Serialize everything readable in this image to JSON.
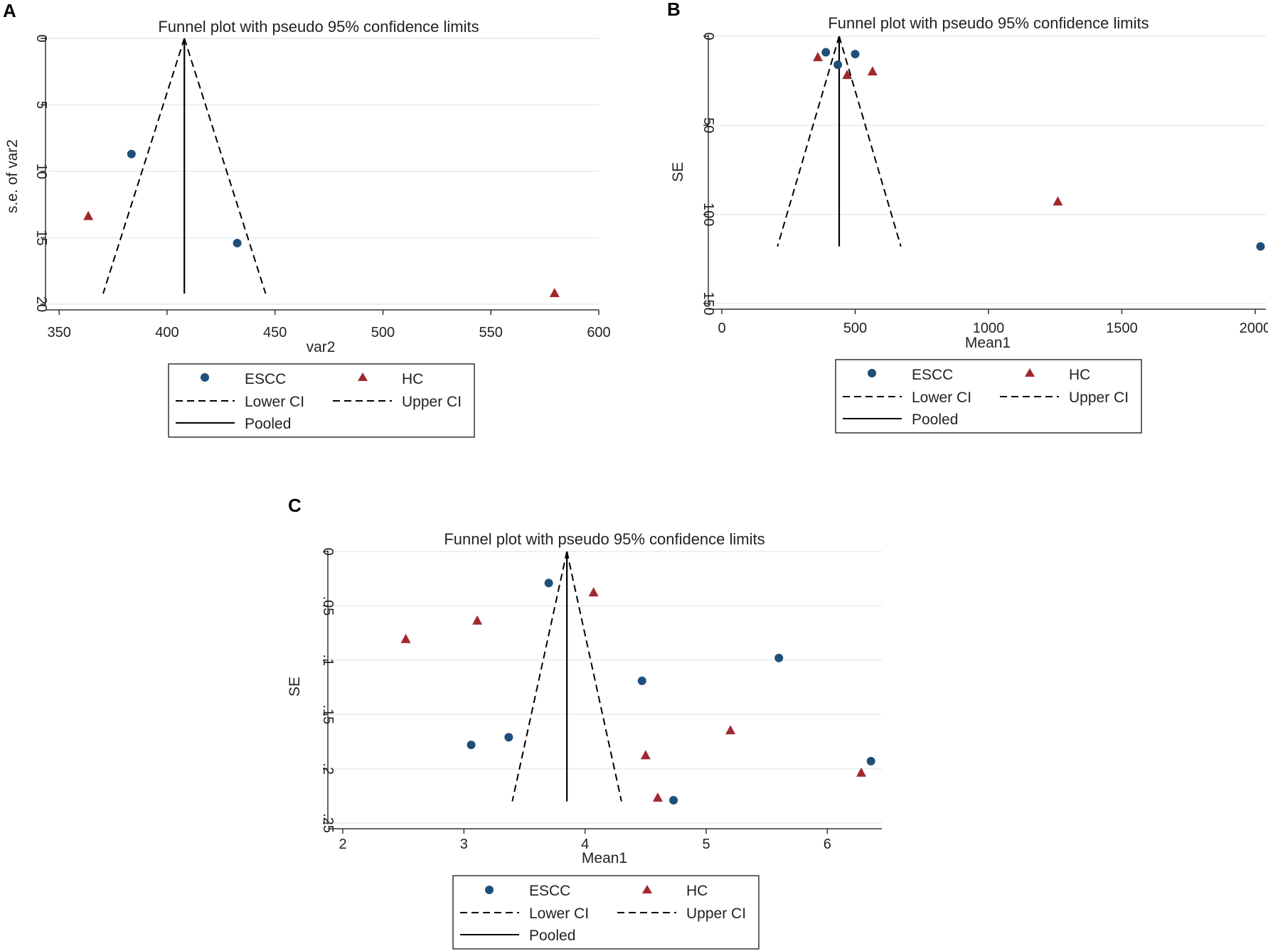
{
  "colors": {
    "escc": "#1f4e79",
    "hc": "#a0282d",
    "grid": "#e6ecef",
    "axis": "#333333",
    "line": "#000000"
  },
  "chart_data": [
    {
      "panel": "A",
      "type": "scatter",
      "subtype": "funnel",
      "title": "Funnel plot with pseudo 95% confidence limits",
      "xlabel": "var2",
      "ylabel": "s.e. of var2",
      "xlim": [
        345,
        600
      ],
      "ylim": [
        0,
        20
      ],
      "y_reversed": true,
      "xticks": [
        350,
        400,
        450,
        500,
        550,
        600
      ],
      "yticks": [
        0,
        5,
        10,
        15,
        20
      ],
      "ytick_labels": [
        "0",
        "5",
        "10",
        "15",
        "20"
      ],
      "pooled": 408,
      "funnel_se_max": 19.2,
      "series": [
        {
          "name": "ESCC",
          "marker": "circle",
          "points": [
            [
              383.5,
              8.7
            ],
            [
              432.5,
              15.4
            ]
          ]
        },
        {
          "name": "HC",
          "marker": "triangle",
          "points": [
            [
              363.5,
              13.4
            ],
            [
              579.5,
              19.2
            ]
          ]
        }
      ],
      "legend": {
        "escc": "ESCC",
        "hc": "HC",
        "lower": "Lower CI",
        "upper": "Upper CI",
        "pooled": "Pooled"
      }
    },
    {
      "panel": "B",
      "type": "scatter",
      "subtype": "funnel",
      "title": "Funnel plot with pseudo 95% confidence limits",
      "xlabel": "Mean1",
      "ylabel": "SE",
      "xlim": [
        -40,
        2040
      ],
      "ylim": [
        0,
        150
      ],
      "y_reversed": true,
      "xticks": [
        0,
        500,
        1000,
        1500,
        2000
      ],
      "yticks": [
        0,
        50,
        100,
        150
      ],
      "ytick_labels": [
        "0",
        "50",
        "100",
        "150"
      ],
      "pooled": 440,
      "funnel_se_max": 118,
      "series": [
        {
          "name": "ESCC",
          "marker": "circle",
          "points": [
            [
              390,
              9
            ],
            [
              435,
              16
            ],
            [
              500,
              10
            ],
            [
              2020,
              118
            ]
          ]
        },
        {
          "name": "HC",
          "marker": "triangle",
          "points": [
            [
              360,
              12
            ],
            [
              470,
              22
            ],
            [
              565,
              20
            ],
            [
              1260,
              93
            ]
          ]
        }
      ],
      "legend": {
        "escc": "ESCC",
        "hc": "HC",
        "lower": "Lower CI",
        "upper": "Upper CI",
        "pooled": "Pooled"
      }
    },
    {
      "panel": "C",
      "type": "scatter",
      "subtype": "funnel",
      "title": "Funnel plot with pseudo 95% confidence limits",
      "xlabel": "Mean1",
      "ylabel": "SE",
      "xlim": [
        1.9,
        6.45
      ],
      "ylim": [
        0,
        0.25
      ],
      "y_reversed": true,
      "xticks": [
        2,
        3,
        4,
        5,
        6
      ],
      "yticks": [
        0,
        0.05,
        0.1,
        0.15,
        0.2,
        0.25
      ],
      "ytick_labels": [
        "0",
        ".05",
        ".1",
        ".15",
        ".2",
        ".25"
      ],
      "pooled": 3.85,
      "funnel_se_max": 0.23,
      "series": [
        {
          "name": "ESCC",
          "marker": "circle",
          "points": [
            [
              3.7,
              0.029
            ],
            [
              3.06,
              0.178
            ],
            [
              3.37,
              0.171
            ],
            [
              4.47,
              0.119
            ],
            [
              4.73,
              0.229
            ],
            [
              5.6,
              0.098
            ],
            [
              6.36,
              0.193
            ]
          ]
        },
        {
          "name": "HC",
          "marker": "triangle",
          "points": [
            [
              2.52,
              0.081
            ],
            [
              3.11,
              0.064
            ],
            [
              4.07,
              0.038
            ],
            [
              4.5,
              0.188
            ],
            [
              4.6,
              0.227
            ],
            [
              5.2,
              0.165
            ],
            [
              6.28,
              0.204
            ]
          ]
        }
      ],
      "legend": {
        "escc": "ESCC",
        "hc": "HC",
        "lower": "Lower CI",
        "upper": "Upper CI",
        "pooled": "Pooled"
      }
    }
  ]
}
